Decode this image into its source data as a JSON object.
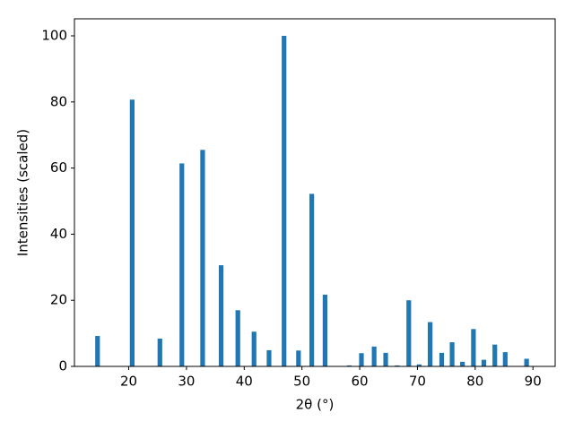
{
  "chart_data": {
    "type": "bar",
    "xlabel": "2θ (°)",
    "ylabel": "Intensities (scaled)",
    "x": [
      14.6,
      20.6,
      25.4,
      29.2,
      32.8,
      36.0,
      38.9,
      41.7,
      44.3,
      46.9,
      49.4,
      51.7,
      54.0,
      58.2,
      60.3,
      62.5,
      64.5,
      66.5,
      68.5,
      70.3,
      72.2,
      74.2,
      76.0,
      77.8,
      79.7,
      81.5,
      83.4,
      85.2,
      88.9
    ],
    "values": [
      9.2,
      80.7,
      8.4,
      61.4,
      65.5,
      30.6,
      17.0,
      10.5,
      4.9,
      100,
      4.8,
      52.2,
      21.7,
      0.3,
      4.0,
      6.0,
      4.1,
      0.3,
      20.0,
      0.6,
      13.4,
      4.1,
      7.3,
      1.4,
      11.3,
      2.0,
      6.6,
      4.3,
      2.3
    ],
    "color": "#1f77b4",
    "xlim": [
      10.6,
      93.85
    ],
    "ylim": [
      0,
      105.15
    ],
    "xticks": [
      20,
      30,
      40,
      50,
      60,
      70,
      80,
      90
    ],
    "yticks": [
      0,
      20,
      40,
      60,
      80,
      100
    ],
    "grid": false
  }
}
